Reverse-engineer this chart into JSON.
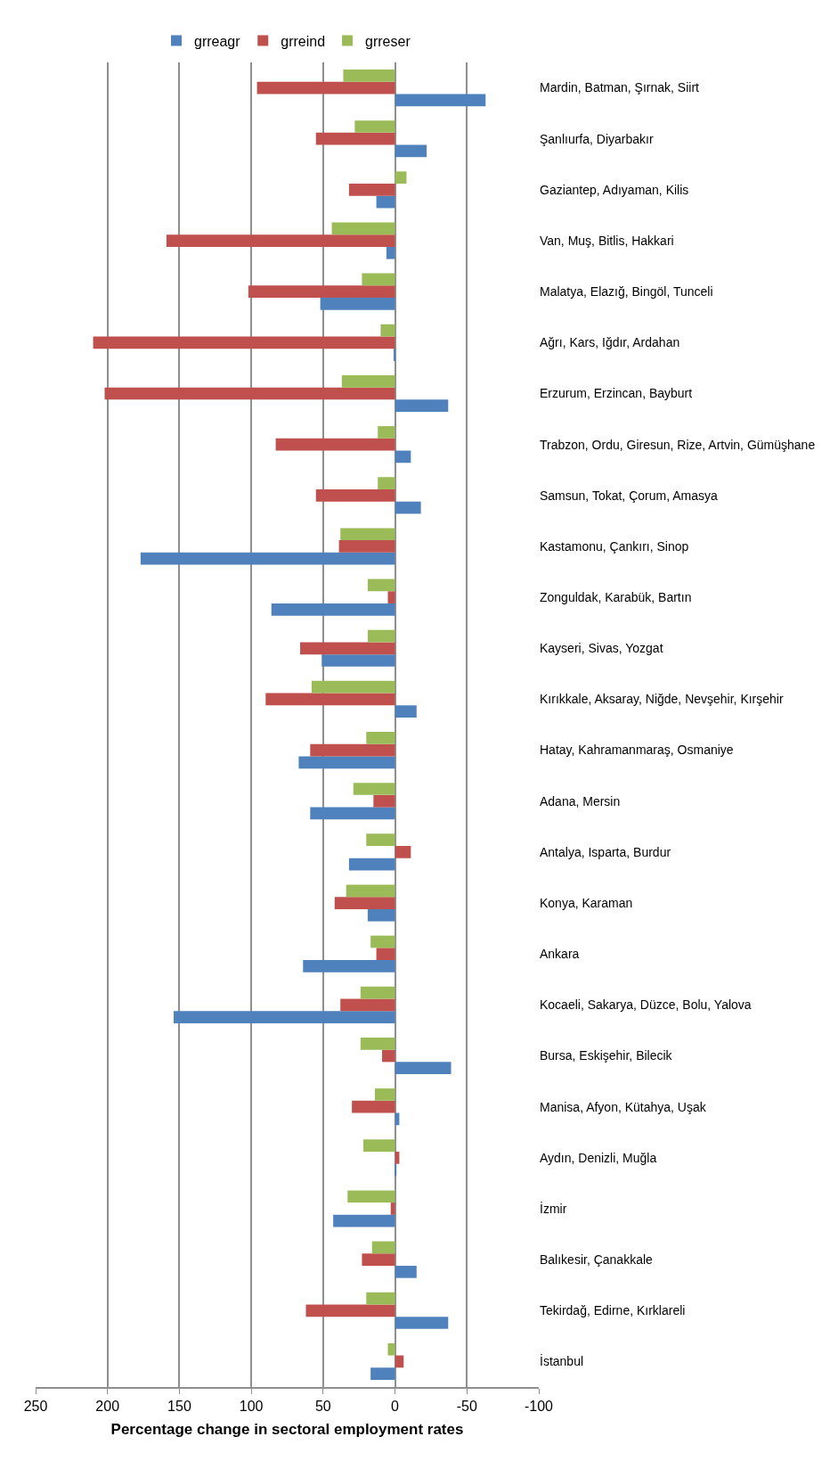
{
  "chart_data": {
    "type": "bar",
    "orientation": "horizontal",
    "xlabel": "Percentage change in sectoral employment rates",
    "categories": [
      "Mardin, Batman, Şırnak, Siirt",
      "Şanlıurfa, Diyarbakır",
      "Gaziantep, Adıyaman, Kilis",
      "Van, Muş, Bitlis, Hakkari",
      "Malatya, Elazığ, Bingöl, Tunceli",
      "Ağrı, Kars, Iğdır, Ardahan",
      "Erzurum, Erzincan, Bayburt",
      "Trabzon, Ordu, Giresun, Rize, Artvin, Gümüşhane",
      "Samsun, Tokat, Çorum, Amasya",
      "Kastamonu, Çankırı, Sinop",
      "Zonguldak, Karabük, Bartın",
      "Kayseri, Sivas, Yozgat",
      "Kırıkkale, Aksaray, Niğde, Nevşehir, Kırşehir",
      "Hatay, Kahramanmaraş, Osmaniye",
      "Adana, Mersin",
      "Antalya, Isparta, Burdur",
      "Konya, Karaman",
      "Ankara",
      "Kocaeli, Sakarya, Düzce, Bolu, Yalova",
      "Bursa, Eskişehir, Bilecik",
      "Manisa, Afyon, Kütahya, Uşak",
      "Aydın, Denizli, Muğla",
      "İzmir",
      "Balıkesir, Çanakkale",
      "Tekirdağ, Edirne, Kırklareli",
      "İstanbul"
    ],
    "series": [
      {
        "name": "grreagr",
        "color": "#4f81bd",
        "values": [
          -63,
          -22,
          13,
          6,
          52,
          1,
          -37,
          -11,
          -18,
          177,
          86,
          51,
          -15,
          67,
          59,
          32,
          19,
          64,
          154,
          -39,
          -3,
          -1,
          43,
          -15,
          -37,
          17
        ]
      },
      {
        "name": "grreind",
        "color": "#c0504d",
        "values": [
          96,
          55,
          32,
          159,
          102,
          210,
          202,
          83,
          55,
          39,
          5,
          66,
          90,
          59,
          15,
          -11,
          42,
          13,
          38,
          9,
          30,
          -3,
          3,
          23,
          62,
          -6
        ]
      },
      {
        "name": "grreser",
        "color": "#9bbb59",
        "values": [
          36,
          28,
          -8,
          44,
          23,
          10,
          37,
          12,
          12,
          38,
          19,
          19,
          58,
          20,
          29,
          20,
          34,
          17,
          24,
          24,
          14,
          22,
          33,
          16,
          20,
          5
        ]
      }
    ],
    "xlim": [
      250,
      -100
    ],
    "xticks": [
      250,
      200,
      150,
      100,
      50,
      0,
      -50,
      -100
    ],
    "grid": "x",
    "legend": "top"
  }
}
